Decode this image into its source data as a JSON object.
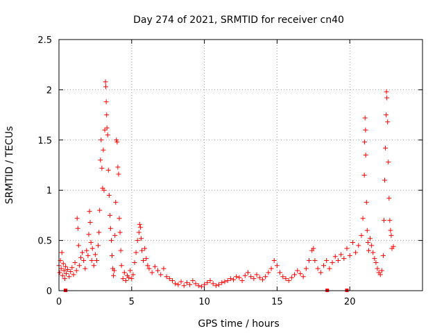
{
  "chart_data": {
    "type": "scatter",
    "title": "Day 274 of 2021, SRMTID for receiver cn40",
    "xlabel": "GPS time / hours",
    "ylabel": "SRMTID / TECUs",
    "xlim": [
      0,
      25
    ],
    "ylim": [
      0,
      2.5
    ],
    "xticks": [
      0,
      5,
      10,
      15,
      20
    ],
    "xtick_labels": [
      "0",
      "5",
      "10",
      "15",
      "20"
    ],
    "yticks": [
      0,
      0.5,
      1,
      1.5,
      2,
      2.5
    ],
    "ytick_labels": [
      "0",
      "0.5",
      "1",
      "1.5",
      "2",
      "2.5"
    ],
    "grid": true,
    "marker": "plus",
    "color": "#ff0000",
    "series": [
      {
        "name": "SRMTID",
        "points": [
          [
            0.0,
            0.25
          ],
          [
            0.05,
            0.18
          ],
          [
            0.1,
            0.3
          ],
          [
            0.15,
            0.22
          ],
          [
            0.2,
            0.38
          ],
          [
            0.25,
            0.15
          ],
          [
            0.3,
            0.27
          ],
          [
            0.35,
            0.2
          ],
          [
            0.4,
            0.12
          ],
          [
            0.45,
            0.24
          ],
          [
            0.5,
            0.17
          ],
          [
            0.6,
            0.21
          ],
          [
            0.7,
            0.14
          ],
          [
            0.8,
            0.19
          ],
          [
            0.9,
            0.23
          ],
          [
            1.0,
            0.16
          ],
          [
            1.1,
            0.28
          ],
          [
            1.2,
            0.2
          ],
          [
            1.25,
            0.72
          ],
          [
            1.3,
            0.62
          ],
          [
            1.35,
            0.45
          ],
          [
            1.4,
            0.25
          ],
          [
            1.5,
            0.33
          ],
          [
            1.6,
            0.38
          ],
          [
            1.7,
            0.3
          ],
          [
            1.8,
            0.22
          ],
          [
            1.9,
            0.4
          ],
          [
            2.0,
            0.35
          ],
          [
            2.05,
            0.56
          ],
          [
            2.1,
            0.79
          ],
          [
            2.15,
            0.68
          ],
          [
            2.2,
            0.48
          ],
          [
            2.25,
            0.3
          ],
          [
            2.3,
            0.42
          ],
          [
            2.4,
            0.25
          ],
          [
            2.5,
            0.36
          ],
          [
            2.6,
            0.3
          ],
          [
            2.7,
            0.45
          ],
          [
            2.75,
            0.58
          ],
          [
            2.8,
            0.8
          ],
          [
            2.85,
            1.3
          ],
          [
            2.9,
            1.5
          ],
          [
            2.95,
            1.22
          ],
          [
            3.0,
            1.02
          ],
          [
            3.05,
            1.4
          ],
          [
            3.1,
            1.0
          ],
          [
            3.15,
            1.6
          ],
          [
            3.2,
            2.08
          ],
          [
            3.22,
            2.03
          ],
          [
            3.25,
            1.88
          ],
          [
            3.28,
            1.75
          ],
          [
            3.3,
            1.62
          ],
          [
            3.35,
            1.55
          ],
          [
            3.4,
            1.2
          ],
          [
            3.45,
            0.95
          ],
          [
            3.5,
            0.75
          ],
          [
            3.55,
            0.62
          ],
          [
            3.6,
            0.5
          ],
          [
            3.65,
            0.35
          ],
          [
            3.7,
            0.22
          ],
          [
            3.75,
            0.15
          ],
          [
            3.8,
            0.2
          ],
          [
            3.85,
            0.55
          ],
          [
            3.9,
            0.88
          ],
          [
            3.95,
            1.5
          ],
          [
            4.0,
            1.48
          ],
          [
            4.05,
            1.23
          ],
          [
            4.1,
            1.16
          ],
          [
            4.15,
            0.72
          ],
          [
            4.2,
            0.58
          ],
          [
            4.25,
            0.4
          ],
          [
            4.3,
            0.25
          ],
          [
            4.4,
            0.12
          ],
          [
            4.5,
            0.18
          ],
          [
            4.6,
            0.1
          ],
          [
            4.7,
            0.15
          ],
          [
            4.8,
            0.13
          ],
          [
            4.9,
            0.2
          ],
          [
            5.0,
            0.12
          ],
          [
            5.1,
            0.16
          ],
          [
            5.2,
            0.28
          ],
          [
            5.3,
            0.38
          ],
          [
            5.4,
            0.5
          ],
          [
            5.5,
            0.58
          ],
          [
            5.55,
            0.66
          ],
          [
            5.6,
            0.63
          ],
          [
            5.65,
            0.52
          ],
          [
            5.7,
            0.4
          ],
          [
            5.8,
            0.3
          ],
          [
            5.9,
            0.42
          ],
          [
            6.0,
            0.32
          ],
          [
            6.1,
            0.25
          ],
          [
            6.2,
            0.22
          ],
          [
            6.4,
            0.18
          ],
          [
            6.6,
            0.24
          ],
          [
            6.8,
            0.2
          ],
          [
            7.0,
            0.16
          ],
          [
            7.2,
            0.22
          ],
          [
            7.4,
            0.14
          ],
          [
            7.6,
            0.12
          ],
          [
            7.8,
            0.1
          ],
          [
            8.0,
            0.07
          ],
          [
            8.2,
            0.06
          ],
          [
            8.4,
            0.09
          ],
          [
            8.6,
            0.05
          ],
          [
            8.8,
            0.08
          ],
          [
            9.0,
            0.06
          ],
          [
            9.2,
            0.1
          ],
          [
            9.4,
            0.07
          ],
          [
            9.6,
            0.05
          ],
          [
            9.8,
            0.04
          ],
          [
            10.0,
            0.06
          ],
          [
            10.2,
            0.08
          ],
          [
            10.4,
            0.1
          ],
          [
            10.6,
            0.07
          ],
          [
            10.8,
            0.05
          ],
          [
            11.0,
            0.06
          ],
          [
            11.2,
            0.08
          ],
          [
            11.4,
            0.09
          ],
          [
            11.6,
            0.1
          ],
          [
            11.8,
            0.12
          ],
          [
            12.0,
            0.11
          ],
          [
            12.2,
            0.14
          ],
          [
            12.4,
            0.13
          ],
          [
            12.6,
            0.1
          ],
          [
            12.8,
            0.15
          ],
          [
            13.0,
            0.18
          ],
          [
            13.2,
            0.14
          ],
          [
            13.4,
            0.12
          ],
          [
            13.6,
            0.16
          ],
          [
            13.8,
            0.13
          ],
          [
            14.0,
            0.11
          ],
          [
            14.2,
            0.14
          ],
          [
            14.4,
            0.18
          ],
          [
            14.6,
            0.22
          ],
          [
            14.8,
            0.3
          ],
          [
            15.0,
            0.25
          ],
          [
            15.2,
            0.18
          ],
          [
            15.4,
            0.14
          ],
          [
            15.6,
            0.12
          ],
          [
            15.8,
            0.1
          ],
          [
            16.0,
            0.13
          ],
          [
            16.2,
            0.16
          ],
          [
            16.4,
            0.2
          ],
          [
            16.6,
            0.17
          ],
          [
            16.8,
            0.14
          ],
          [
            17.0,
            0.22
          ],
          [
            17.2,
            0.3
          ],
          [
            17.4,
            0.4
          ],
          [
            17.5,
            0.42
          ],
          [
            17.6,
            0.3
          ],
          [
            17.8,
            0.22
          ],
          [
            18.0,
            0.18
          ],
          [
            18.2,
            0.25
          ],
          [
            18.4,
            0.3
          ],
          [
            18.6,
            0.22
          ],
          [
            18.8,
            0.28
          ],
          [
            19.0,
            0.34
          ],
          [
            19.2,
            0.3
          ],
          [
            19.4,
            0.36
          ],
          [
            19.6,
            0.32
          ],
          [
            19.8,
            0.42
          ],
          [
            20.0,
            0.35
          ],
          [
            20.2,
            0.48
          ],
          [
            20.4,
            0.38
          ],
          [
            20.6,
            0.45
          ],
          [
            20.8,
            0.55
          ],
          [
            20.9,
            0.72
          ],
          [
            21.0,
            1.15
          ],
          [
            21.02,
            1.48
          ],
          [
            21.05,
            1.72
          ],
          [
            21.08,
            1.6
          ],
          [
            21.1,
            1.35
          ],
          [
            21.15,
            0.88
          ],
          [
            21.2,
            0.6
          ],
          [
            21.25,
            0.48
          ],
          [
            21.3,
            0.4
          ],
          [
            21.4,
            0.52
          ],
          [
            21.5,
            0.45
          ],
          [
            21.6,
            0.38
          ],
          [
            21.7,
            0.32
          ],
          [
            21.8,
            0.28
          ],
          [
            21.9,
            0.22
          ],
          [
            22.0,
            0.18
          ],
          [
            22.1,
            0.16
          ],
          [
            22.2,
            0.2
          ],
          [
            22.3,
            0.35
          ],
          [
            22.35,
            0.7
          ],
          [
            22.4,
            1.1
          ],
          [
            22.45,
            1.42
          ],
          [
            22.5,
            1.75
          ],
          [
            22.52,
            1.98
          ],
          [
            22.55,
            1.92
          ],
          [
            22.6,
            1.68
          ],
          [
            22.65,
            1.28
          ],
          [
            22.7,
            0.92
          ],
          [
            22.75,
            0.7
          ],
          [
            22.8,
            0.6
          ],
          [
            22.85,
            0.55
          ],
          [
            22.9,
            0.42
          ],
          [
            23.0,
            0.44
          ]
        ]
      }
    ],
    "gap_markers_x": [
      0.45,
      18.45,
      19.8
    ]
  }
}
